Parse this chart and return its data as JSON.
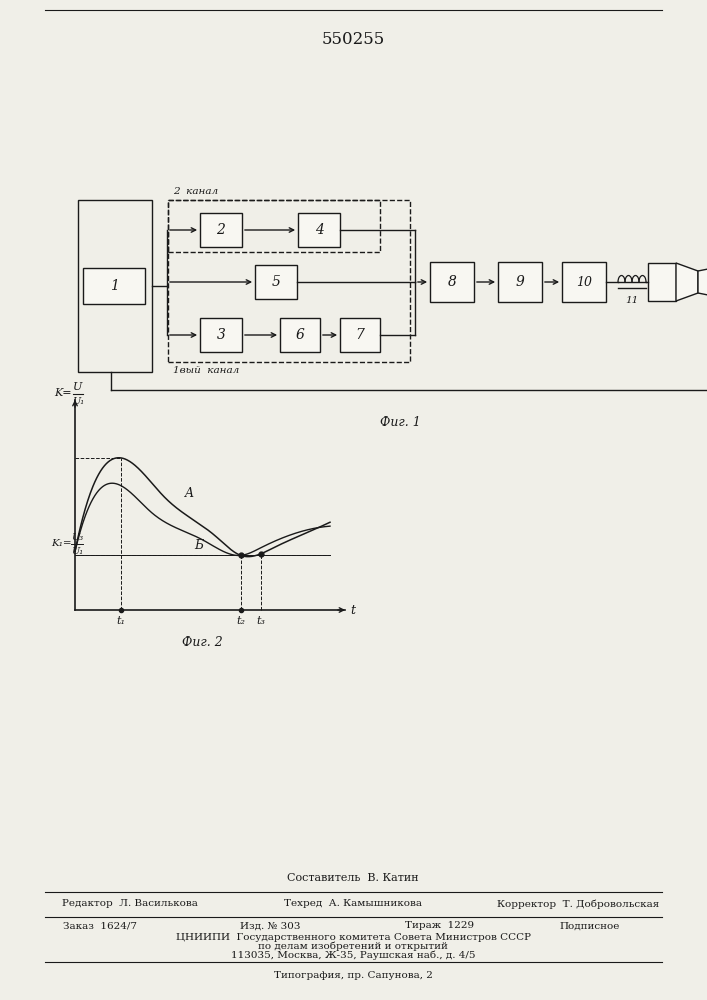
{
  "title": "550255",
  "fig1_label": "Фиг. 1",
  "fig2_label": "Фиг. 2",
  "channel2_label": "2  канал",
  "channel1_label": "1вый  канал",
  "bg_color": "#f0efe8",
  "line_color": "#1a1a1a",
  "box_color": "#f8f7f2",
  "footer_sestavitel": "Составитель  В. Катин",
  "footer_redaktor": "Редактор  Л. Василькова",
  "footer_tehred": "Техред  А. Камышникова",
  "footer_korrektor": "Корректор  Т. Добровольская",
  "footer_zakaz": "Заказ  1624/7",
  "footer_izd": "Изд. № 303",
  "footer_tirazh": "Тираж  1229",
  "footer_podpisnoe": "Подписное",
  "footer_tsniipi": "ЦНИИПИ  Государственного комитета Совета Министров СССР",
  "footer_po_delam": "по делам изобретений и открытий",
  "footer_address": "113035, Москва, Ж-35, Раушская наб., д. 4/5",
  "footer_tipografiya": "Типография, пр. Сапунова, 2"
}
